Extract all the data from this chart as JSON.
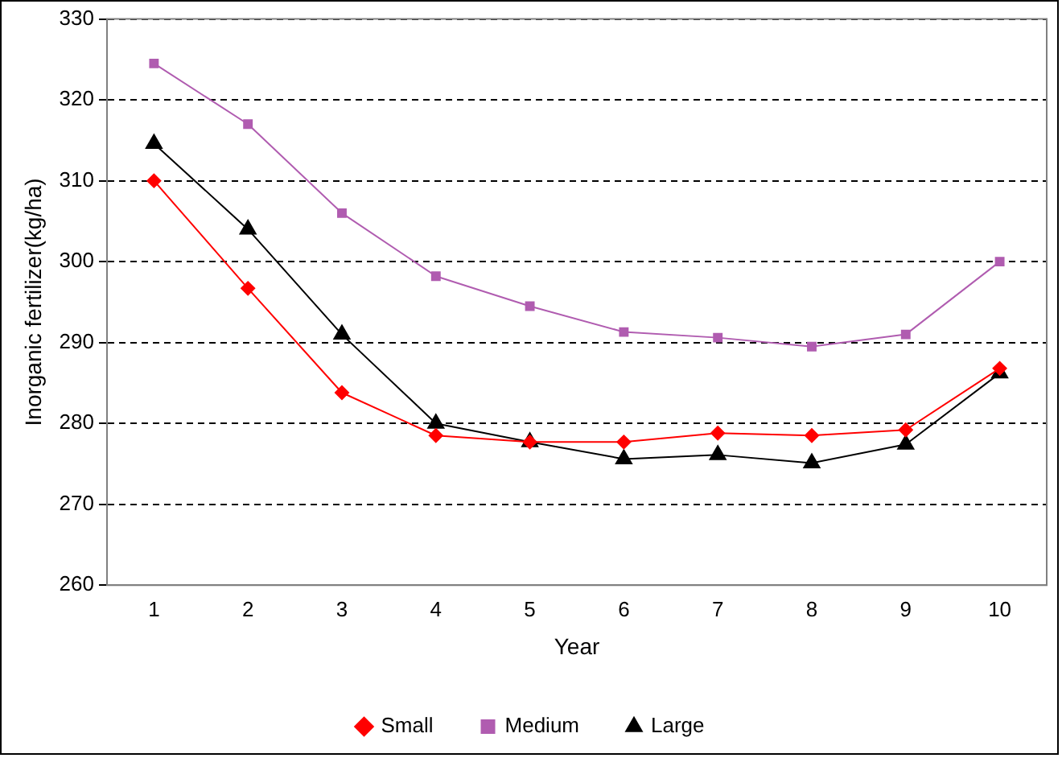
{
  "chart_data": {
    "type": "line",
    "xlabel": "Year",
    "ylabel": "Inorganic fertilizer(kg/ha)",
    "categories": [
      "1",
      "2",
      "3",
      "4",
      "5",
      "6",
      "7",
      "8",
      "9",
      "10"
    ],
    "series": [
      {
        "name": "Small",
        "color": "#ff0000",
        "marker": "diamond",
        "values": [
          310,
          296.7,
          283.8,
          278.5,
          277.7,
          277.7,
          278.8,
          278.5,
          279.2,
          286.8
        ]
      },
      {
        "name": "Medium",
        "color": "#b05cb0",
        "marker": "square",
        "values": [
          324.5,
          317,
          306,
          298.2,
          294.5,
          291.3,
          290.6,
          289.5,
          291,
          300
        ]
      },
      {
        "name": "Large",
        "color": "#000000",
        "marker": "triangle",
        "values": [
          314.6,
          304,
          291,
          280,
          277.7,
          275.6,
          276.1,
          275.1,
          277.4,
          286.2
        ]
      }
    ],
    "ylim": [
      260,
      330
    ],
    "yticks": [
      260,
      270,
      280,
      290,
      300,
      310,
      320,
      330
    ],
    "grid": "y",
    "legend": "bottom",
    "line_style": "solid"
  }
}
